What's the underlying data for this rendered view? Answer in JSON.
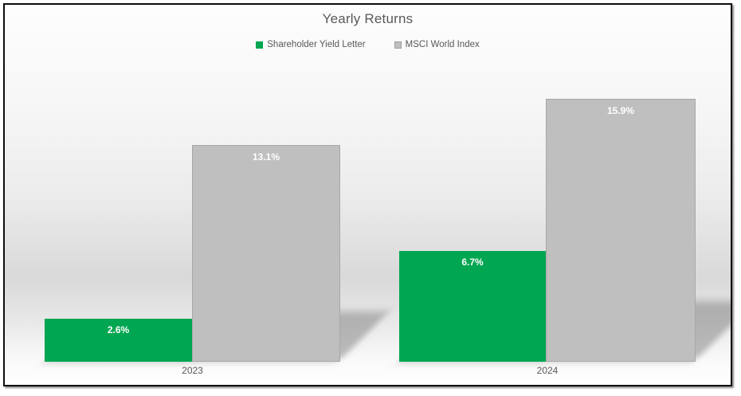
{
  "page": {
    "background": "#ffffff",
    "frame_border_color": "#0e0e0e",
    "text_color": "#595959"
  },
  "chart_data": {
    "type": "bar",
    "title": "Yearly Returns",
    "categories": [
      "2023",
      "2024"
    ],
    "series": [
      {
        "name": "Shareholder Yield Letter",
        "color": "#00a651",
        "values": [
          2.6,
          6.7
        ],
        "labels": [
          "2.6%",
          "6.7%"
        ]
      },
      {
        "name": "MSCI World Index",
        "color": "#bfbfbf",
        "values": [
          13.1,
          15.9
        ],
        "labels": [
          "13.1%",
          "15.9%"
        ]
      }
    ],
    "xlabel": "",
    "ylabel": "",
    "ylim": [
      0,
      17.3
    ],
    "grid": false,
    "axis_visible": false,
    "legend_position": "top",
    "data_labels": "inside-end",
    "data_label_color": "#ffffff"
  }
}
